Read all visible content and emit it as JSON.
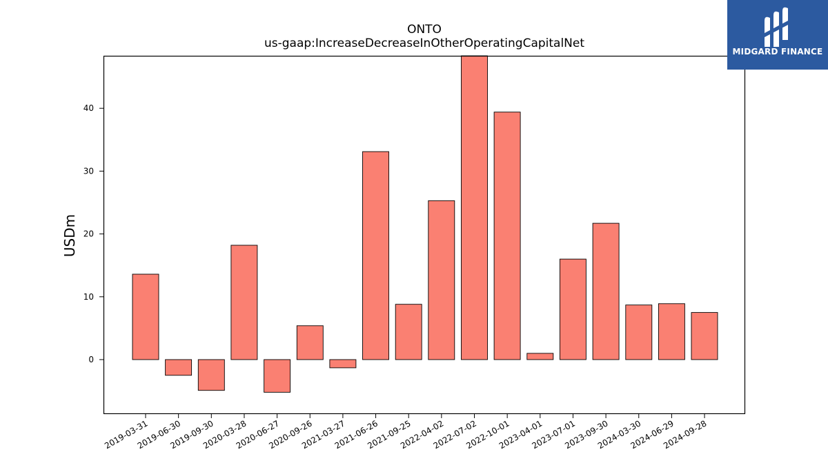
{
  "chart_data": {
    "type": "bar",
    "title": "ONTO",
    "subtitle": "us-gaap:IncreaseDecreaseInOtherOperatingCapitalNet",
    "xlabel": "",
    "ylabel": "USDm",
    "categories": [
      "2019-03-31",
      "2019-06-30",
      "2019-09-30",
      "2020-03-28",
      "2020-06-27",
      "2020-09-26",
      "2021-03-27",
      "2021-06-26",
      "2021-09-25",
      "2022-04-02",
      "2022-07-02",
      "2022-10-01",
      "2023-04-01",
      "2023-07-01",
      "2023-09-30",
      "2024-03-30",
      "2024-06-29",
      "2024-09-28"
    ],
    "values": [
      13.6,
      -2.5,
      -4.9,
      18.2,
      -5.2,
      5.4,
      -1.3,
      33.1,
      8.8,
      25.3,
      48.5,
      39.4,
      1.0,
      16.0,
      21.7,
      8.7,
      8.9,
      7.5
    ],
    "yticks": [
      0,
      10,
      20,
      30,
      40
    ],
    "ylim": [
      -8.6,
      48.4
    ],
    "bar_color": "#fa8072",
    "bar_edge_color": "#000000",
    "grid": false
  },
  "watermark": {
    "text": "MIDGARD FINANCE",
    "background": "#2c5aa0"
  }
}
